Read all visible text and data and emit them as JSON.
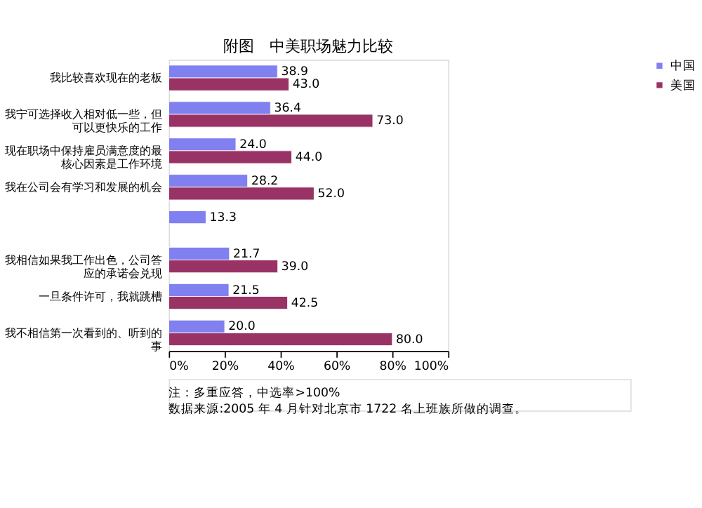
{
  "chart_data": {
    "type": "bar",
    "orientation": "horizontal",
    "title": "附图　中美职场魅力比较",
    "categories": [
      "我比较喜欢现在的老板",
      "我宁可选择收入相对低一些，但可以更快乐的工作",
      "现在职场中保持雇员满意度的最核心因素是工作环境",
      "我在公司会有学习和发展的机会",
      null,
      "我相信如果我工作出色，公司答应的承诺会兑现",
      "一旦条件许可，我就跳槽",
      "我不相信第一次看到的、听到的事"
    ],
    "series": [
      {
        "name": "中国",
        "color": "#8080f0",
        "values": [
          38.9,
          36.4,
          24.0,
          28.2,
          13.3,
          21.7,
          21.5,
          20.0
        ],
        "value_labels": [
          "38.9",
          "36.4",
          "24.0",
          "28.2",
          "13.3",
          "21.7",
          "21.5",
          "20.0"
        ]
      },
      {
        "name": "美国",
        "color": "#993366",
        "values": [
          43.0,
          73.0,
          44.0,
          52.0,
          null,
          39.0,
          42.5,
          80.0
        ],
        "value_labels": [
          "43.0",
          "73.0",
          "44.0",
          "52.0",
          null,
          "39.0",
          "42.5",
          "80.0"
        ]
      }
    ],
    "xlim": [
      0,
      100
    ],
    "xticks": [
      {
        "value": 0,
        "label": "0%"
      },
      {
        "value": 20,
        "label": "20%"
      },
      {
        "value": 40,
        "label": "40%"
      },
      {
        "value": 60,
        "label": "60%"
      },
      {
        "value": 80,
        "label": "80%"
      },
      {
        "value": 100,
        "label": "100%"
      }
    ],
    "legend": "right",
    "grid": false,
    "annotations": [
      "注：多重应答，中选率>100%",
      "数据来源:2005 年 4 月针对北京市 1722 名上班族所做的调查。"
    ]
  }
}
